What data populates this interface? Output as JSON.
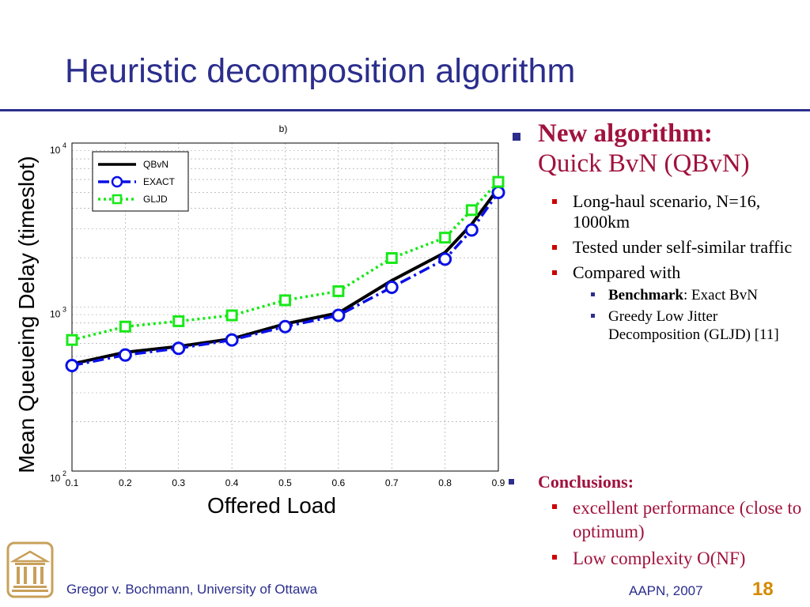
{
  "slide": {
    "title": "Heuristic decomposition algorithm",
    "page_number": "18",
    "footer_left": "Gregor v. Bochmann, University of Ottawa",
    "footer_right": "AAPN, 2007",
    "accent_color": "#2b2e8c",
    "highlight_color": "#a0123d"
  },
  "bullets": {
    "main_heading": "New algorithm:",
    "main_text": "Quick BvN (QBvN)",
    "sub_items": [
      "Long-haul scenario, N=16, 1000km",
      "Tested under self-similar traffic",
      "Compared with"
    ],
    "subsub_items": [
      {
        "bold": "Benchmark",
        "rest": ": Exact BvN"
      },
      {
        "bold": "",
        "rest": "Greedy Low Jitter Decomposition (GLJD) [11]"
      }
    ],
    "conclusions_heading": "Conclusions:",
    "conclusions": [
      "excellent performance (close to optimum)",
      "Low complexity O(NF)"
    ]
  },
  "chart_data": {
    "type": "line",
    "title": "b)",
    "xlabel": "Offered Load",
    "ylabel": "Mean Queueing Delay (timeslot)",
    "yscale": "log",
    "xlim": [
      0.1,
      0.9
    ],
    "ylim": [
      100,
      10000
    ],
    "xticks": [
      "0.1",
      "0.2",
      "0.3",
      "0.4",
      "0.5",
      "0.6",
      "0.7",
      "0.8",
      "0.9"
    ],
    "yticks": [
      {
        "base": "10",
        "exp": "2",
        "value": 100
      },
      {
        "base": "10",
        "exp": "3",
        "value": 1000
      },
      {
        "base": "10",
        "exp": "4",
        "value": 10000
      }
    ],
    "grid": true,
    "legend_position": "top-left",
    "series": [
      {
        "name": "QBvN",
        "color": "#000000",
        "style": "solid",
        "marker": "none",
        "x": [
          0.1,
          0.2,
          0.3,
          0.4,
          0.5,
          0.6,
          0.7,
          0.8,
          0.85,
          0.9
        ],
        "values": [
          450,
          530,
          575,
          640,
          790,
          920,
          1450,
          2150,
          3200,
          5300
        ]
      },
      {
        "name": "EXACT",
        "color": "#0a10e6",
        "style": "dashdot",
        "marker": "circle",
        "x": [
          0.1,
          0.2,
          0.3,
          0.4,
          0.5,
          0.6,
          0.7,
          0.8,
          0.85,
          0.9
        ],
        "values": [
          440,
          510,
          560,
          630,
          760,
          890,
          1320,
          1960,
          2950,
          5000
        ]
      },
      {
        "name": "GLJD",
        "color": "#18e818",
        "style": "dotted",
        "marker": "square",
        "x": [
          0.1,
          0.2,
          0.3,
          0.4,
          0.5,
          0.6,
          0.7,
          0.8,
          0.85,
          0.9
        ],
        "values": [
          630,
          760,
          820,
          890,
          1100,
          1250,
          1990,
          2650,
          3900,
          5800
        ]
      }
    ]
  }
}
